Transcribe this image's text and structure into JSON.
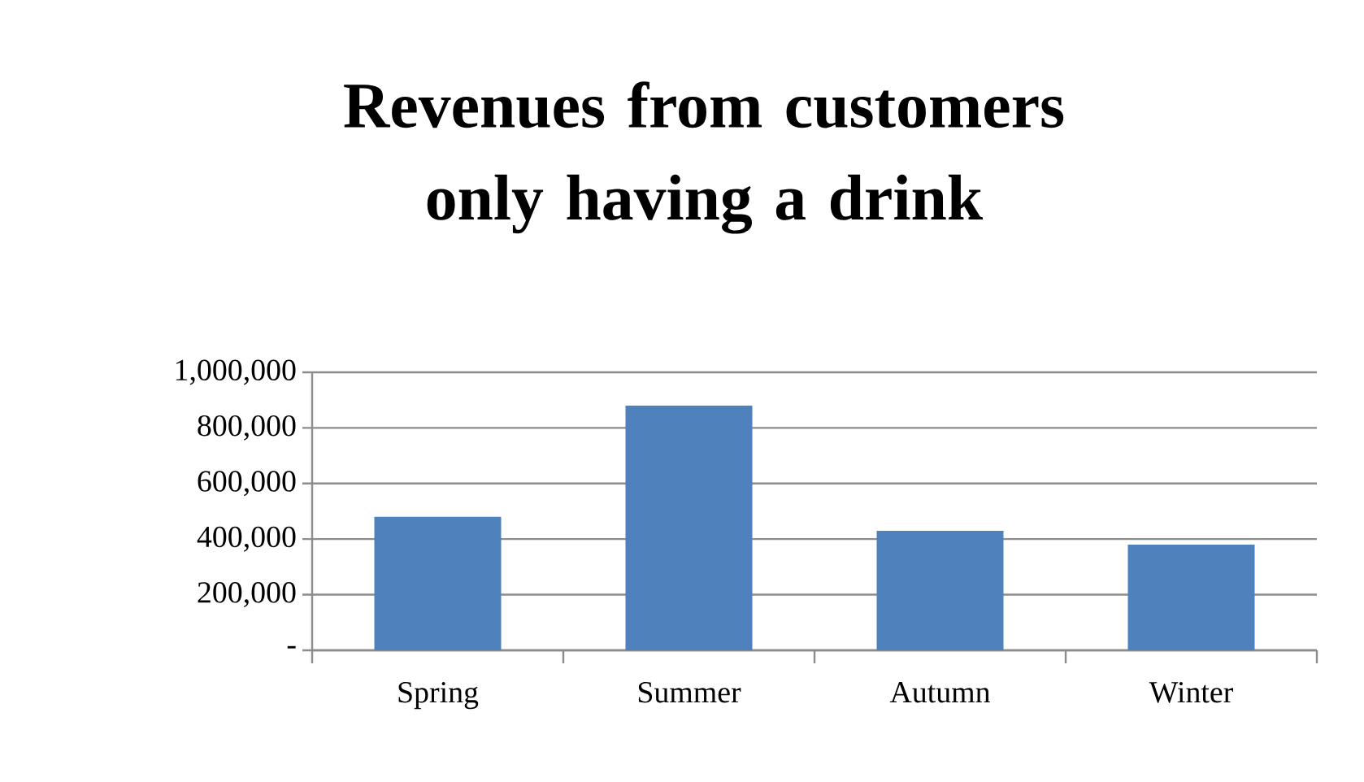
{
  "chart_data": {
    "type": "bar",
    "title": "Revenues from customers only having a drink",
    "categories": [
      "Spring",
      "Summer",
      "Autumn",
      "Winter"
    ],
    "values": [
      480000,
      880000,
      430000,
      380000
    ],
    "color": "#4f81bd",
    "ylim": [
      0,
      1000000
    ],
    "yticks": [
      {
        "value": 0,
        "label": "-"
      },
      {
        "value": 200000,
        "label": "200,000"
      },
      {
        "value": 400000,
        "label": "400,000"
      },
      {
        "value": 600000,
        "label": "600,000"
      },
      {
        "value": 800000,
        "label": "800,000"
      },
      {
        "value": 1000000,
        "label": "1,000,000"
      }
    ],
    "grid": "y"
  }
}
